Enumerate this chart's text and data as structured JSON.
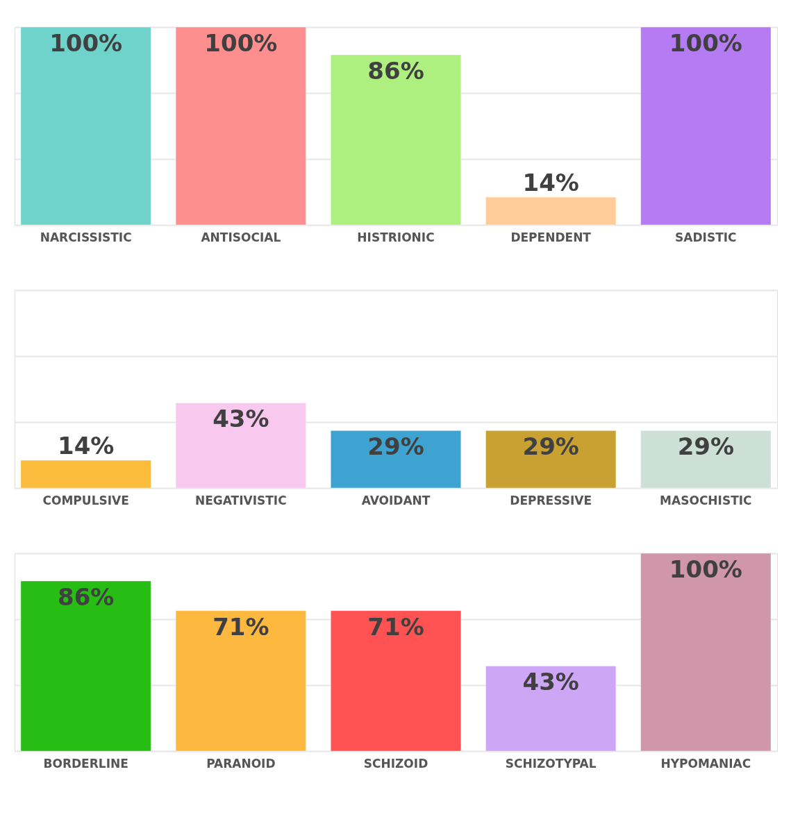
{
  "chart_data": [
    {
      "type": "bar",
      "categories": [
        "NARCISSISTIC",
        "ANTISOCIAL",
        "HISTRIONIC",
        "DEPENDENT",
        "SADISTIC"
      ],
      "values": [
        100,
        100,
        86,
        14,
        100
      ],
      "value_labels": [
        "100%",
        "100%",
        "86%",
        "14%",
        "100%"
      ],
      "colors": [
        "#6fd3cc",
        "#ff8f8f",
        "#aef07f",
        "#ffcc99",
        "#b57bf2"
      ],
      "ylim": [
        0,
        100
      ],
      "yticks": [
        {
          "value": 0,
          "label": null
        },
        {
          "value": 33.3,
          "label": null
        },
        {
          "value": 66.7,
          "label": null
        },
        {
          "value": 100,
          "label": null
        }
      ],
      "grid": "y",
      "tick_labels": "x"
    },
    {
      "type": "bar",
      "categories": [
        "COMPULSIVE",
        "NEGATIVISTIC",
        "AVOIDANT",
        "DEPRESSIVE",
        "MASOCHISTIC"
      ],
      "values": [
        14,
        43,
        29,
        29,
        29
      ],
      "value_labels": [
        "14%",
        "43%",
        "29%",
        "29%",
        "29%"
      ],
      "colors": [
        "#fbbb3c",
        "#f9c8ef",
        "#3fa3d1",
        "#c9a032",
        "#cde0d8"
      ],
      "ylim": [
        0,
        100
      ],
      "yticks": [
        {
          "value": 0,
          "label": null
        },
        {
          "value": 33.3,
          "label": null
        },
        {
          "value": 66.7,
          "label": null
        },
        {
          "value": 100,
          "label": null
        }
      ],
      "grid": "y",
      "tick_labels": "x"
    },
    {
      "type": "bar",
      "categories": [
        "BORDERLINE",
        "PARANOID",
        "SCHIZOID",
        "SCHIZOTYPAL",
        "HYPOMANIAC"
      ],
      "values": [
        86,
        71,
        71,
        43,
        100
      ],
      "value_labels": [
        "86%",
        "71%",
        "71%",
        "43%",
        "100%"
      ],
      "colors": [
        "#27bd14",
        "#fdb840",
        "#ff5252",
        "#cda6f5",
        "#d096aa"
      ],
      "ylim": [
        0,
        100
      ],
      "yticks": [
        {
          "value": 0,
          "label": null
        },
        {
          "value": 33.3,
          "label": null
        },
        {
          "value": 66.7,
          "label": null
        },
        {
          "value": 100,
          "label": null
        }
      ],
      "grid": "y",
      "tick_labels": "x"
    }
  ]
}
